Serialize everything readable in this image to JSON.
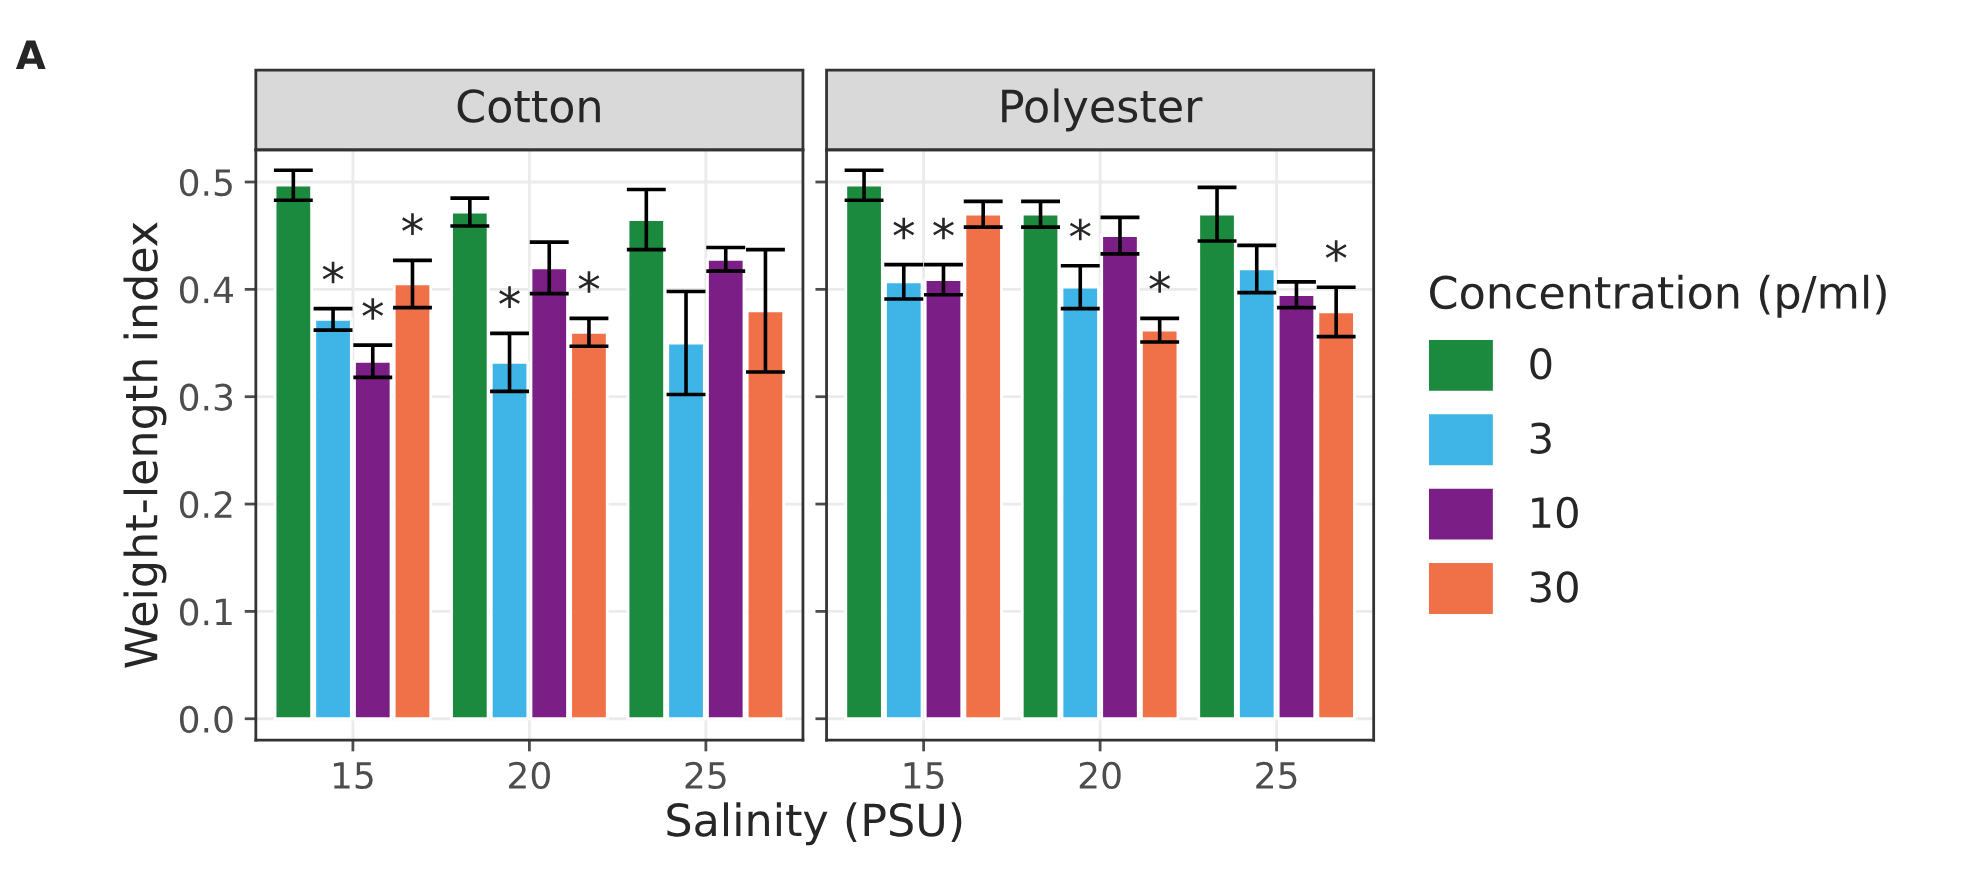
{
  "chart_data": [
    {
      "type": "bar",
      "title": "Cotton",
      "ylabel": "Weight-length index",
      "xlabel": "Salinity (PSU)",
      "annotations": [
        "A"
      ],
      "categories": [
        "15",
        "20",
        "25"
      ],
      "series": [
        {
          "color": "#1b8a3e",
          "values": [
            0.497,
            0.472,
            0.465
          ],
          "errors": [
            0.014,
            0.013,
            0.028
          ]
        },
        {
          "color": "#3fb4e6",
          "values": [
            0.372,
            0.332,
            0.35
          ],
          "errors": [
            0.01,
            0.027,
            0.048
          ],
          "value_labels": [
            "*",
            "*",
            null
          ]
        },
        {
          "color": "#7b1f86",
          "values": [
            0.333,
            0.42,
            0.428
          ],
          "errors": [
            0.015,
            0.024,
            0.011
          ],
          "value_labels": [
            "*",
            null,
            null
          ]
        },
        {
          "color": "#f07048",
          "values": [
            0.405,
            0.36,
            0.38
          ],
          "errors": [
            0.022,
            0.013,
            0.057
          ],
          "value_labels": [
            "*",
            "*",
            null
          ]
        }
      ],
      "ylim": [
        -0.02,
        0.53
      ],
      "yticks": [
        {
          "value": 0,
          "label": "0.0"
        },
        0.1,
        0.2,
        0.3,
        0.4,
        0.5
      ],
      "grid": true
    },
    {
      "type": "bar",
      "title": "Polyester",
      "legend_title": "Concentration (p/ml)",
      "legend": "right",
      "tick_labels": "x",
      "categories": [
        "15",
        "20",
        "25"
      ],
      "series": [
        {
          "name": "0",
          "color": "#1b8a3e",
          "values": [
            0.497,
            0.47,
            0.47
          ],
          "errors": [
            0.014,
            0.012,
            0.025
          ]
        },
        {
          "name": "3",
          "color": "#3fb4e6",
          "values": [
            0.407,
            0.402,
            0.419
          ],
          "errors": [
            0.016,
            0.02,
            0.022
          ],
          "value_labels": [
            "*",
            "*",
            null
          ]
        },
        {
          "name": "10",
          "color": "#7b1f86",
          "values": [
            0.409,
            0.45,
            0.395
          ],
          "errors": [
            0.014,
            0.017,
            0.012
          ],
          "value_labels": [
            "*",
            null,
            null
          ]
        },
        {
          "name": "30",
          "color": "#f07048",
          "values": [
            0.47,
            0.362,
            0.379
          ],
          "errors": [
            0.012,
            0.011,
            0.023
          ],
          "value_labels": [
            null,
            "*",
            "*"
          ]
        }
      ],
      "ylim": [
        -0.02,
        0.53
      ],
      "yticks": [
        {
          "value": 0,
          "label": null
        },
        {
          "value": 0.1,
          "label": null
        },
        {
          "value": 0.2,
          "label": null
        },
        {
          "value": 0.3,
          "label": null
        },
        {
          "value": 0.4,
          "label": null
        },
        {
          "value": 0.5,
          "label": null
        }
      ],
      "grid": true
    }
  ]
}
